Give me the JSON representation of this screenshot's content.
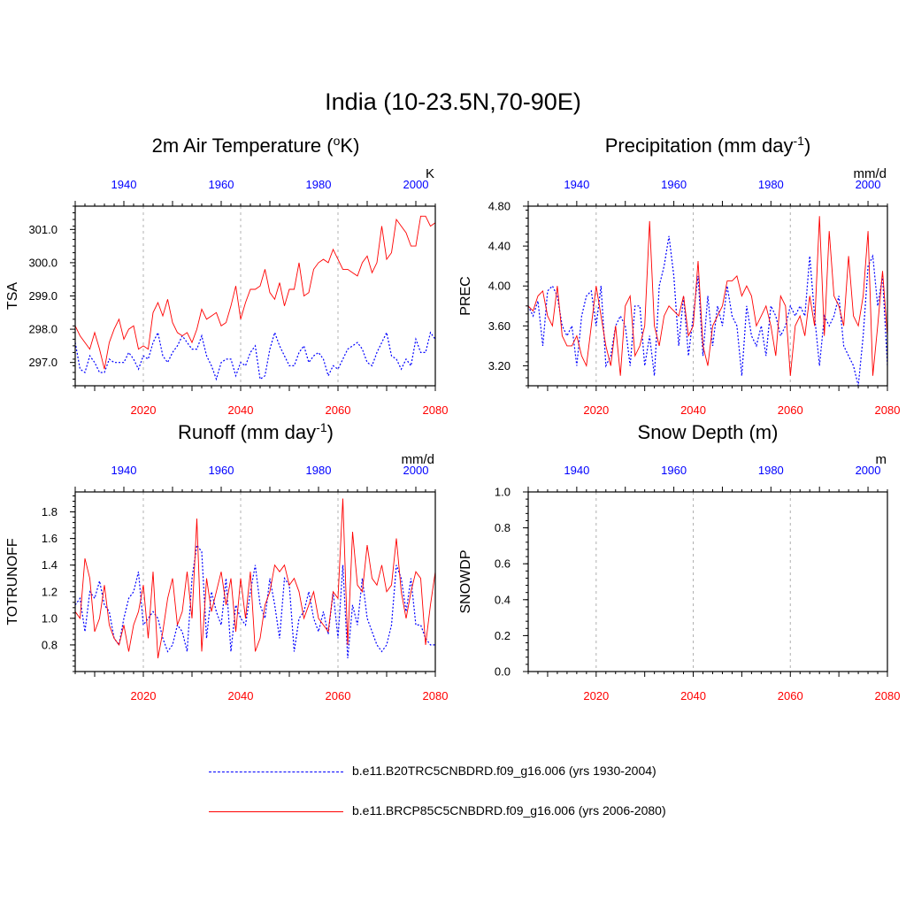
{
  "title": "India (10-23.5N,70-90E)",
  "colors": {
    "historical": "#0000ff",
    "future": "#ff0000",
    "grid": "#b0b0b0"
  },
  "legend": [
    {
      "label": "b.e11.B20TRC5CNBDRD.f09_g16.006 (yrs 1930-2004)",
      "color": "#0000ff",
      "style": "dashed"
    },
    {
      "label": "b.e11.BRCP85C5CNBDRD.f09_g16.006 (yrs 2006-2080)",
      "color": "#ff0000",
      "style": "solid"
    }
  ],
  "chart_data": [
    {
      "type": "line",
      "title": "2m Air Temperature (",
      "title_sup": "o",
      "title_suffix": "K)",
      "ylabel": "TSA",
      "units": "K",
      "ylim": [
        296.3,
        301.7
      ],
      "yticks": [
        297.0,
        298.0,
        299.0,
        300.0,
        301.0
      ],
      "ytick_labels": [
        "297.0",
        "298.0",
        "299.0",
        "300.0",
        "301.0"
      ],
      "bottom_axis": {
        "range": [
          2006,
          2080
        ],
        "ticks": [
          2020,
          2040,
          2060,
          2080
        ],
        "color": "#ff0000"
      },
      "top_axis": {
        "range": [
          1930,
          2004
        ],
        "ticks": [
          1940,
          1960,
          1980,
          2000
        ],
        "color": "#0000ff"
      },
      "series": [
        {
          "values": [
            297.6,
            296.8,
            296.7,
            297.2,
            297.0,
            296.7,
            296.7,
            297.1,
            297.0,
            297.0,
            297.0,
            297.3,
            297.1,
            296.8,
            297.2,
            297.1,
            297.6,
            297.9,
            297.2,
            297.0,
            297.3,
            297.5,
            297.8,
            297.6,
            297.4,
            297.4,
            297.8,
            297.2,
            296.9,
            296.5,
            297.0,
            297.1,
            297.1,
            296.6,
            297.0,
            296.9,
            297.3,
            297.5,
            296.5,
            296.6,
            297.4,
            297.9,
            297.5,
            297.2,
            296.9,
            296.9,
            297.3,
            297.5,
            297.0,
            297.2,
            297.3,
            297.1,
            296.6,
            296.9,
            296.8,
            297.1,
            297.4,
            297.5,
            297.6,
            297.4,
            297.0,
            296.9,
            297.3,
            297.6,
            297.9,
            297.2,
            297.1,
            296.8,
            297.1,
            296.9,
            297.7,
            297.3,
            297.3,
            297.9,
            297.7
          ]
        },
        {
          "values": [
            298.1,
            297.8,
            297.6,
            297.4,
            297.9,
            297.4,
            296.8,
            297.6,
            298.0,
            298.3,
            297.7,
            298.0,
            298.1,
            297.4,
            297.5,
            297.4,
            298.5,
            298.8,
            298.4,
            298.9,
            298.2,
            297.9,
            297.8,
            297.9,
            297.6,
            298.0,
            298.6,
            298.3,
            298.4,
            298.5,
            298.1,
            298.2,
            298.7,
            299.3,
            298.3,
            298.8,
            299.2,
            299.2,
            299.3,
            299.8,
            299.1,
            298.9,
            299.4,
            298.7,
            299.2,
            299.2,
            300.0,
            299.0,
            299.1,
            299.8,
            300.0,
            300.1,
            300.0,
            300.4,
            300.1,
            299.8,
            299.8,
            299.7,
            299.6,
            300.0,
            300.2,
            299.7,
            300.0,
            301.1,
            300.1,
            300.3,
            301.3,
            301.1,
            300.9,
            300.5,
            300.5,
            301.4,
            301.4,
            301.1,
            301.2
          ]
        }
      ]
    },
    {
      "type": "line",
      "title": "Precipitation (mm day",
      "title_sup": "-1",
      "title_suffix": ")",
      "ylabel": "PREC",
      "units": "mm/d",
      "ylim": [
        3.0,
        4.8
      ],
      "yticks": [
        3.2,
        3.6,
        4.0,
        4.4,
        4.8
      ],
      "ytick_labels": [
        "3.20",
        "3.60",
        "4.00",
        "4.40",
        "4.80"
      ],
      "bottom_axis": {
        "range": [
          2006,
          2080
        ],
        "ticks": [
          2020,
          2040,
          2060,
          2080
        ],
        "color": "#ff0000"
      },
      "top_axis": {
        "range": [
          1930,
          2004
        ],
        "ticks": [
          1940,
          1960,
          1980,
          2000
        ],
        "color": "#0000ff"
      },
      "series": [
        {
          "values": [
            3.8,
            3.7,
            3.85,
            3.4,
            3.95,
            4.0,
            3.9,
            3.6,
            3.5,
            3.6,
            3.2,
            3.7,
            3.9,
            3.95,
            3.6,
            4.0,
            3.2,
            3.3,
            3.6,
            3.7,
            3.6,
            3.2,
            3.8,
            3.8,
            3.2,
            3.5,
            3.1,
            4.0,
            4.2,
            4.5,
            4.1,
            3.4,
            3.9,
            3.3,
            3.7,
            4.1,
            3.3,
            3.9,
            3.4,
            3.8,
            3.6,
            4.0,
            3.7,
            3.6,
            3.1,
            3.8,
            3.5,
            3.4,
            3.6,
            3.3,
            3.8,
            3.7,
            3.5,
            3.6,
            3.8,
            3.7,
            3.8,
            3.7,
            4.3,
            3.7,
            3.2,
            3.7,
            3.6,
            3.7,
            3.9,
            3.4,
            3.3,
            3.2,
            3.0,
            3.5,
            4.2,
            4.3,
            3.8,
            4.1,
            3.2
          ]
        },
        {
          "values": [
            3.8,
            3.75,
            3.9,
            3.95,
            3.7,
            3.6,
            4.0,
            3.5,
            3.4,
            3.4,
            3.5,
            3.3,
            3.2,
            3.6,
            4.0,
            3.7,
            3.4,
            3.2,
            3.6,
            3.1,
            3.8,
            3.9,
            3.3,
            3.4,
            3.6,
            4.65,
            3.6,
            3.4,
            3.7,
            3.8,
            3.75,
            3.7,
            3.9,
            3.5,
            3.6,
            4.25,
            3.4,
            3.2,
            3.6,
            3.7,
            3.8,
            4.05,
            4.05,
            4.1,
            3.9,
            4.0,
            3.9,
            3.6,
            3.7,
            3.8,
            3.6,
            3.3,
            3.9,
            3.8,
            3.1,
            3.6,
            3.7,
            3.5,
            3.9,
            3.6,
            4.7,
            3.5,
            4.55,
            3.9,
            3.8,
            3.6,
            4.3,
            3.7,
            3.6,
            3.9,
            4.55,
            3.1,
            3.6,
            4.15,
            3.5
          ]
        }
      ]
    },
    {
      "type": "line",
      "title": "Runoff (mm day",
      "title_sup": "-1",
      "title_suffix": ")",
      "ylabel": "TOTRUNOFF",
      "units": "mm/d",
      "ylim": [
        0.6,
        1.95
      ],
      "yticks": [
        0.8,
        1.0,
        1.2,
        1.4,
        1.6,
        1.8
      ],
      "ytick_labels": [
        "0.8",
        "1.0",
        "1.2",
        "1.4",
        "1.6",
        "1.8"
      ],
      "bottom_axis": {
        "range": [
          2006,
          2080
        ],
        "ticks": [
          2020,
          2040,
          2060,
          2080
        ],
        "color": "#ff0000"
      },
      "top_axis": {
        "range": [
          1930,
          2004
        ],
        "ticks": [
          1940,
          1960,
          1980,
          2000
        ],
        "color": "#0000ff"
      },
      "series": [
        {
          "values": [
            1.1,
            1.15,
            0.9,
            1.2,
            1.15,
            1.28,
            1.1,
            1.05,
            0.85,
            0.8,
            1.0,
            1.15,
            1.2,
            1.35,
            0.95,
            1.0,
            1.05,
            1.0,
            0.85,
            0.75,
            0.8,
            0.95,
            0.9,
            0.75,
            1.3,
            1.55,
            1.5,
            0.85,
            1.2,
            1.05,
            0.95,
            1.3,
            0.75,
            1.1,
            1.0,
            0.95,
            1.2,
            1.4,
            1.1,
            1.0,
            1.3,
            1.1,
            0.85,
            1.3,
            1.25,
            0.75,
            1.0,
            1.05,
            1.2,
            1.0,
            0.9,
            1.05,
            0.88,
            1.2,
            0.85,
            1.4,
            0.7,
            1.1,
            0.95,
            1.3,
            1.0,
            0.9,
            0.8,
            0.75,
            0.8,
            0.95,
            1.4,
            1.3,
            1.05,
            1.3,
            0.95,
            0.95,
            0.85,
            0.8,
            0.8
          ]
        },
        {
          "values": [
            1.05,
            1.0,
            1.45,
            1.3,
            0.9,
            1.0,
            1.25,
            0.95,
            0.85,
            0.8,
            0.95,
            0.75,
            0.95,
            1.05,
            1.25,
            0.85,
            1.35,
            0.7,
            0.9,
            1.15,
            1.3,
            0.95,
            1.05,
            1.35,
            1.0,
            1.75,
            0.75,
            1.3,
            1.05,
            1.2,
            1.35,
            1.1,
            1.3,
            0.9,
            1.3,
            1.0,
            1.35,
            0.75,
            0.85,
            1.1,
            1.2,
            1.4,
            1.35,
            1.4,
            1.25,
            1.3,
            1.2,
            1.0,
            1.1,
            1.2,
            1.0,
            0.95,
            0.9,
            1.2,
            1.15,
            1.9,
            0.8,
            1.65,
            1.25,
            1.2,
            1.55,
            1.3,
            1.25,
            1.4,
            1.2,
            1.25,
            1.6,
            1.2,
            1.0,
            1.2,
            1.35,
            1.3,
            0.8,
            1.1,
            1.35
          ]
        }
      ]
    },
    {
      "type": "line",
      "title": "Snow Depth (m)",
      "title_sup": "",
      "title_suffix": "",
      "ylabel": "SNOWDP",
      "units": "m",
      "ylim": [
        0.0,
        1.0
      ],
      "yticks": [
        0.0,
        0.2,
        0.4,
        0.6,
        0.8,
        1.0
      ],
      "ytick_labels": [
        "0.0",
        "0.2",
        "0.4",
        "0.6",
        "0.8",
        "1.0"
      ],
      "bottom_axis": {
        "range": [
          2006,
          2080
        ],
        "ticks": [
          2020,
          2040,
          2060,
          2080
        ],
        "color": "#ff0000"
      },
      "top_axis": {
        "range": [
          1930,
          2004
        ],
        "ticks": [
          1940,
          1960,
          1980,
          2000
        ],
        "color": "#0000ff"
      },
      "series": []
    }
  ]
}
